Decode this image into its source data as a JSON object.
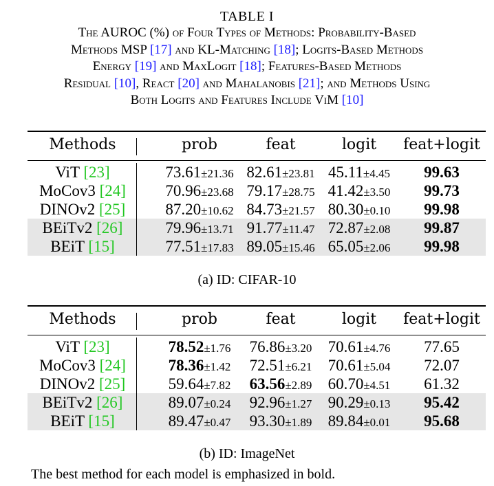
{
  "caption": {
    "label": "TABLE I",
    "lines": [
      [
        {
          "t": "The AUROC (%) of Four Types of Methods: Probability-Based"
        }
      ],
      [
        {
          "t": "Methods MSP "
        },
        {
          "t": "[17]",
          "ref": true
        },
        {
          "t": " and KL-Matching "
        },
        {
          "t": "[18]",
          "ref": true
        },
        {
          "t": "; Logits-Based Methods"
        }
      ],
      [
        {
          "t": "Energy "
        },
        {
          "t": "[19]",
          "ref": true
        },
        {
          "t": " and MaxLogit "
        },
        {
          "t": "[18]",
          "ref": true
        },
        {
          "t": "; Features-Based Methods"
        }
      ],
      [
        {
          "t": "Residual "
        },
        {
          "t": "[10]",
          "ref": true
        },
        {
          "t": ", React "
        },
        {
          "t": "[20]",
          "ref": true
        },
        {
          "t": " and Mahalanobis "
        },
        {
          "t": "[21]",
          "ref": true
        },
        {
          "t": "; and Methods Using"
        }
      ],
      [
        {
          "t": "Both Logits and Features Include ViM "
        },
        {
          "t": "[10]",
          "ref": true
        }
      ]
    ]
  },
  "tables": [
    {
      "caption": "(a) ID: CIFAR-10",
      "headers": [
        "Methods",
        "prob",
        "feat",
        "logit",
        "feat+logit"
      ],
      "rows": [
        {
          "model": "ViT ",
          "ref": "[23]",
          "shaded": false,
          "cells": [
            {
              "mean": "73.61",
              "std": "21.36",
              "bold": false
            },
            {
              "mean": "82.61",
              "std": "23.81",
              "bold": false
            },
            {
              "mean": "45.11",
              "std": "4.45",
              "bold": false
            },
            {
              "mean": "99.63",
              "std": "",
              "bold": true
            }
          ]
        },
        {
          "model": "MoCov3 ",
          "ref": "[24]",
          "shaded": false,
          "cells": [
            {
              "mean": "70.96",
              "std": "23.68",
              "bold": false
            },
            {
              "mean": "79.17",
              "std": "28.75",
              "bold": false
            },
            {
              "mean": "41.42",
              "std": "3.50",
              "bold": false
            },
            {
              "mean": "99.73",
              "std": "",
              "bold": true
            }
          ]
        },
        {
          "model": "DINOv2 ",
          "ref": "[25]",
          "shaded": false,
          "cells": [
            {
              "mean": "87.20",
              "std": "10.62",
              "bold": false
            },
            {
              "mean": "84.73",
              "std": "21.57",
              "bold": false
            },
            {
              "mean": "80.30",
              "std": "0.10",
              "bold": false
            },
            {
              "mean": "99.98",
              "std": "",
              "bold": true
            }
          ]
        },
        {
          "model": "BEiTv2 ",
          "ref": "[26]",
          "shaded": true,
          "cells": [
            {
              "mean": "79.96",
              "std": "13.71",
              "bold": false
            },
            {
              "mean": "91.77",
              "std": "11.47",
              "bold": false
            },
            {
              "mean": "72.87",
              "std": "2.08",
              "bold": false
            },
            {
              "mean": "99.87",
              "std": "",
              "bold": true
            }
          ]
        },
        {
          "model": "BEiT ",
          "ref": "[15]",
          "shaded": true,
          "cells": [
            {
              "mean": "77.51",
              "std": "17.83",
              "bold": false
            },
            {
              "mean": "89.05",
              "std": "15.46",
              "bold": false
            },
            {
              "mean": "65.05",
              "std": "2.06",
              "bold": false
            },
            {
              "mean": "99.98",
              "std": "",
              "bold": true
            }
          ]
        }
      ]
    },
    {
      "caption": "(b) ID: ImageNet",
      "headers": [
        "Methods",
        "prob",
        "feat",
        "logit",
        "feat+logit"
      ],
      "rows": [
        {
          "model": "ViT ",
          "ref": "[23]",
          "shaded": false,
          "cells": [
            {
              "mean": "78.52",
              "std": "1.76",
              "bold": true
            },
            {
              "mean": "76.86",
              "std": "3.20",
              "bold": false
            },
            {
              "mean": "70.61",
              "std": "4.76",
              "bold": false
            },
            {
              "mean": "77.65",
              "std": "",
              "bold": false
            }
          ]
        },
        {
          "model": "MoCov3 ",
          "ref": "[24]",
          "shaded": false,
          "cells": [
            {
              "mean": "78.36",
              "std": "1.42",
              "bold": true
            },
            {
              "mean": "72.51",
              "std": "6.21",
              "bold": false
            },
            {
              "mean": "70.61",
              "std": "5.04",
              "bold": false
            },
            {
              "mean": "72.07",
              "std": "",
              "bold": false
            }
          ]
        },
        {
          "model": "DINOv2 ",
          "ref": "[25]",
          "shaded": false,
          "cells": [
            {
              "mean": "59.64",
              "std": "7.82",
              "bold": false
            },
            {
              "mean": "63.56",
              "std": "2.89",
              "bold": true
            },
            {
              "mean": "60.70",
              "std": "4.51",
              "bold": false
            },
            {
              "mean": "61.32",
              "std": "",
              "bold": false
            }
          ]
        },
        {
          "model": "BEiTv2 ",
          "ref": "[26]",
          "shaded": true,
          "cells": [
            {
              "mean": "89.07",
              "std": "0.24",
              "bold": false
            },
            {
              "mean": "92.96",
              "std": "1.27",
              "bold": false
            },
            {
              "mean": "90.29",
              "std": "0.13",
              "bold": false
            },
            {
              "mean": "95.42",
              "std": "",
              "bold": true
            }
          ]
        },
        {
          "model": "BEiT ",
          "ref": "[15]",
          "shaded": true,
          "cells": [
            {
              "mean": "89.47",
              "std": "0.47",
              "bold": false
            },
            {
              "mean": "93.30",
              "std": "1.89",
              "bold": false
            },
            {
              "mean": "89.84",
              "std": "0.01",
              "bold": false
            },
            {
              "mean": "95.68",
              "std": "",
              "bold": true
            }
          ]
        }
      ]
    }
  ],
  "note": "The best method for each model is emphasized in bold.",
  "colors": {
    "ref_blue": "#1a1aff",
    "ref_green": "#22c722",
    "row_shade": "#e6e6e6"
  }
}
